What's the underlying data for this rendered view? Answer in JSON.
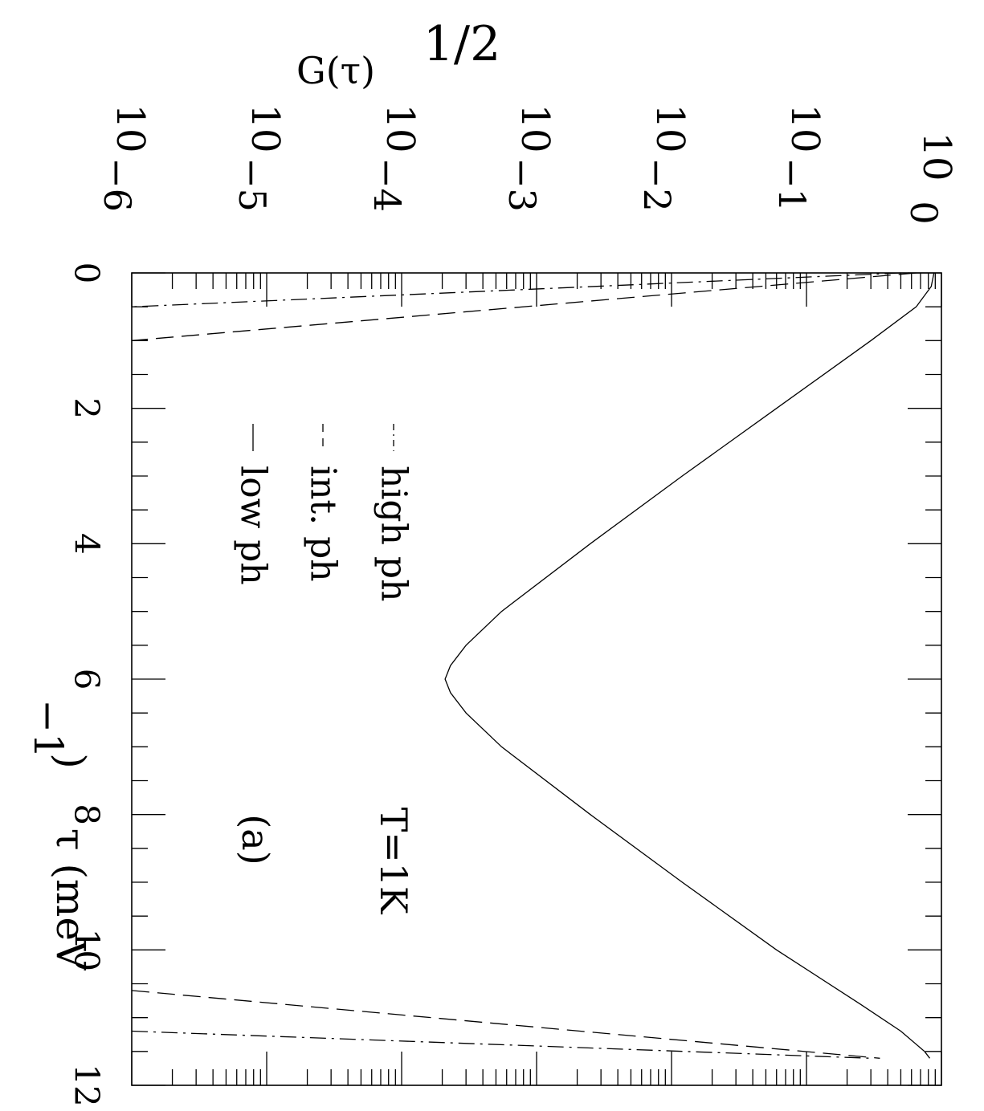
{
  "chart_data": {
    "type": "line",
    "orientation": "rotated 90 degrees clockwise",
    "xlabel": "τ (meV",
    "xlabel_sup": "−1",
    "xlabel_close": ")",
    "ylabel": "G(τ)",
    "ylabel_sup": "1/2",
    "xlim": [
      0,
      12
    ],
    "ylim": [
      1e-06,
      1
    ],
    "yscale": "log",
    "xticks": [
      "0",
      "2",
      "4",
      "6",
      "8",
      "10",
      "12"
    ],
    "yticks": [
      {
        "base": "10",
        "exp": "−6"
      },
      {
        "base": "10",
        "exp": "−5"
      },
      {
        "base": "10",
        "exp": "−4"
      },
      {
        "base": "10",
        "exp": "−3"
      },
      {
        "base": "10",
        "exp": "−2"
      },
      {
        "base": "10",
        "exp": "−1"
      },
      {
        "base": "10",
        "exp": "0"
      }
    ],
    "legend_position": "inside, upper-left in rotated frame",
    "series": [
      {
        "name": "high ph",
        "style": "dash-dot",
        "points": [
          [
            0,
            0.5
          ],
          [
            0.5,
            1e-06
          ],
          [
            11.2,
            1e-06
          ],
          [
            11.6,
            0.3
          ]
        ]
      },
      {
        "name": "int. ph",
        "style": "dashed",
        "points": [
          [
            0,
            0.65
          ],
          [
            1.0,
            1e-06
          ],
          [
            10.6,
            1e-06
          ],
          [
            11.6,
            0.35
          ]
        ]
      },
      {
        "name": "low ph",
        "style": "solid",
        "points": [
          [
            0,
            0.88
          ],
          [
            0.2,
            0.84
          ],
          [
            0.5,
            0.65
          ],
          [
            1.0,
            0.3
          ],
          [
            2.0,
            0.06
          ],
          [
            3.0,
            0.012
          ],
          [
            4.0,
            0.0025
          ],
          [
            5.0,
            0.00055
          ],
          [
            5.5,
            0.0003
          ],
          [
            5.8,
            0.00023
          ],
          [
            6.0,
            0.00021
          ],
          [
            6.2,
            0.00023
          ],
          [
            6.5,
            0.0003
          ],
          [
            7.0,
            0.00055
          ],
          [
            8.0,
            0.0025
          ],
          [
            9.0,
            0.012
          ],
          [
            10.0,
            0.06
          ],
          [
            10.8,
            0.25
          ],
          [
            11.2,
            0.5
          ],
          [
            11.5,
            0.75
          ],
          [
            11.6,
            0.82
          ]
        ]
      }
    ],
    "annotations": [
      {
        "text": "T=1K"
      },
      {
        "text": "(a)"
      }
    ]
  }
}
